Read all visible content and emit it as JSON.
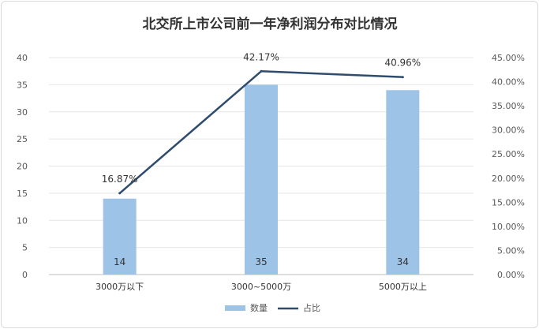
{
  "chart_data": {
    "type": "bar+line",
    "title": "北交所上市公司前一年净利润分布对比情况",
    "categories": [
      "3000万以下",
      "3000~5000万",
      "5000万以上"
    ],
    "series": [
      {
        "name": "数量",
        "type": "bar",
        "axis": "left",
        "values": [
          14,
          35,
          34
        ],
        "labels": [
          "14",
          "35",
          "34"
        ],
        "color": "#9dc3e6"
      },
      {
        "name": "占比",
        "type": "line",
        "axis": "right",
        "values": [
          16.87,
          42.17,
          40.96
        ],
        "labels": [
          "16.87%",
          "42.17%",
          "40.96%"
        ],
        "color": "#2f4b6e"
      }
    ],
    "y_left": {
      "min": 0,
      "max": 40,
      "step": 5,
      "tick_labels": [
        "0",
        "5",
        "10",
        "15",
        "20",
        "25",
        "30",
        "35",
        "40"
      ]
    },
    "y_right": {
      "min": 0,
      "max": 45,
      "step": 5,
      "tick_labels": [
        "0.00%",
        "5.00%",
        "10.00%",
        "15.00%",
        "20.00%",
        "25.00%",
        "30.00%",
        "35.00%",
        "40.00%",
        "45.00%"
      ]
    },
    "grid": true,
    "legend": "bottom"
  }
}
